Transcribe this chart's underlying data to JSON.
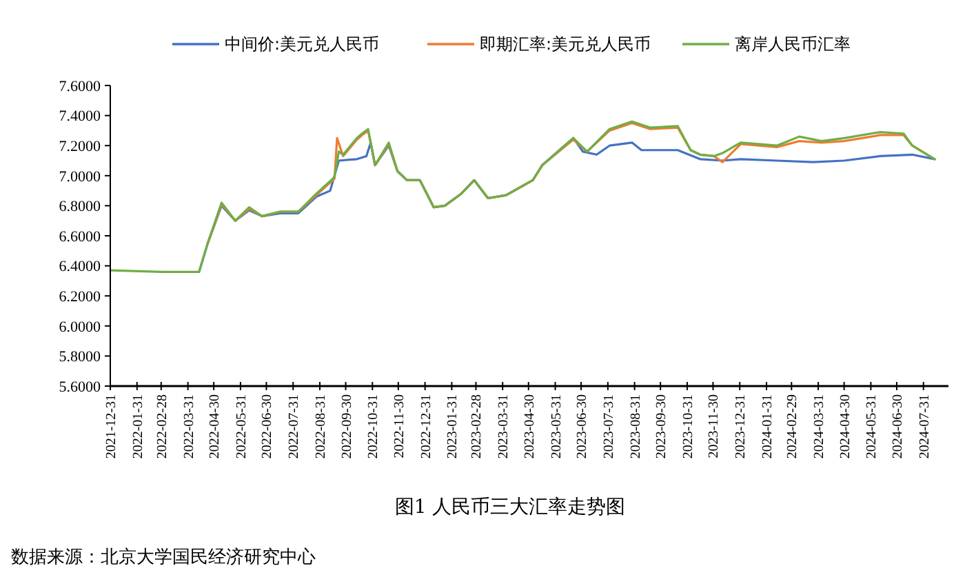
{
  "chart_data": {
    "type": "line",
    "title": "图1 人民币三大汇率走势图",
    "annotations": [
      "数据来源：北京大学国民经济研究中心"
    ],
    "legend": "top",
    "line_style": "solid",
    "ylim": [
      5.6,
      7.6
    ],
    "yticks": [
      {
        "value": 5.6,
        "label": "5.6000"
      },
      {
        "value": 5.8,
        "label": "5.8000"
      },
      {
        "value": 6.0,
        "label": "6.0000"
      },
      {
        "value": 6.2,
        "label": "6.2000"
      },
      {
        "value": 6.4,
        "label": "6.4000"
      },
      {
        "value": 6.6,
        "label": "6.6000"
      },
      {
        "value": 6.8,
        "label": "6.8000"
      },
      {
        "value": 7.0,
        "label": "7.0000"
      },
      {
        "value": 7.2,
        "label": "7.2000"
      },
      {
        "value": 7.4,
        "label": "7.4000"
      },
      {
        "value": 7.6,
        "label": "7.6000"
      }
    ],
    "xlim": [
      "2021-12-31",
      "2024-08-29"
    ],
    "xticks": [
      "2021-12-31",
      "2022-01-31",
      "2022-02-28",
      "2022-03-31",
      "2022-04-30",
      "2022-05-31",
      "2022-06-30",
      "2022-07-31",
      "2022-08-31",
      "2022-09-30",
      "2022-10-31",
      "2022-11-30",
      "2022-12-31",
      "2023-01-31",
      "2023-02-28",
      "2023-03-31",
      "2023-04-30",
      "2023-05-31",
      "2023-06-30",
      "2023-07-31",
      "2023-08-31",
      "2023-09-30",
      "2023-10-31",
      "2023-11-30",
      "2023-12-31",
      "2024-01-31",
      "2024-02-29",
      "2024-03-31",
      "2024-04-30",
      "2024-05-31",
      "2024-06-30",
      "2024-07-31"
    ],
    "series": [
      {
        "name": "中间价:美元兑人民币",
        "color": "#4472c4",
        "x": [
          "2022-04-13",
          "2022-04-23",
          "2022-05-09",
          "2022-05-25",
          "2022-06-10",
          "2022-06-25",
          "2022-07-16",
          "2022-08-06",
          "2022-08-27",
          "2022-09-12",
          "2022-09-22",
          "2022-10-13",
          "2022-10-24",
          "2022-10-29",
          "2022-11-03",
          "2022-11-19",
          "2022-11-29",
          "2022-12-10",
          "2022-12-25",
          "2023-01-10",
          "2023-01-23",
          "2023-02-11",
          "2023-02-26",
          "2023-03-14",
          "2023-04-04",
          "2023-05-05",
          "2023-05-16",
          "2023-06-21",
          "2023-07-02",
          "2023-07-18",
          "2023-08-02",
          "2023-08-28",
          "2023-09-08",
          "2023-10-20",
          "2023-11-15",
          "2023-12-11",
          "2024-01-01",
          "2024-02-12",
          "2024-03-25",
          "2024-04-30",
          "2024-06-11",
          "2024-07-18",
          "2024-08-13"
        ],
        "values": [
          6.36,
          6.55,
          6.8,
          6.7,
          6.77,
          6.73,
          6.75,
          6.75,
          6.86,
          6.9,
          7.1,
          7.11,
          7.13,
          7.22,
          7.07,
          7.2,
          7.03,
          6.97,
          6.97,
          6.79,
          6.8,
          6.88,
          6.97,
          6.85,
          6.87,
          6.97,
          7.07,
          7.25,
          7.16,
          7.14,
          7.2,
          7.22,
          7.17,
          7.17,
          7.11,
          7.1,
          7.11,
          7.1,
          7.09,
          7.1,
          7.13,
          7.14,
          7.11
        ]
      },
      {
        "name": "即期汇率:美元兑人民币",
        "color": "#ed7d31",
        "x": [
          "2022-04-23",
          "2022-05-09",
          "2022-05-25",
          "2022-06-10",
          "2022-06-25",
          "2022-07-16",
          "2022-08-06",
          "2022-08-27",
          "2022-09-17",
          "2022-09-20",
          "2022-09-27",
          "2022-10-13",
          "2022-10-19",
          "2022-10-26",
          "2022-11-03",
          "2022-11-19",
          "2022-11-29",
          "2022-12-10",
          "2022-12-25",
          "2023-01-10",
          "2023-01-23",
          "2023-02-11",
          "2023-02-26",
          "2023-03-14",
          "2023-04-04",
          "2023-05-05",
          "2023-05-16",
          "2023-06-21",
          "2023-07-07",
          "2023-08-02",
          "2023-08-28",
          "2023-09-18",
          "2023-10-20",
          "2023-11-04",
          "2023-11-15",
          "2023-12-01",
          "2023-12-11",
          "2024-01-01",
          "2024-02-12",
          "2024-03-09",
          "2024-04-04",
          "2024-04-30",
          "2024-06-11",
          "2024-07-08",
          "2024-07-18",
          "2024-08-13"
        ],
        "values": [
          6.55,
          6.81,
          6.7,
          6.78,
          6.73,
          6.76,
          6.76,
          6.87,
          6.98,
          7.25,
          7.13,
          7.24,
          7.27,
          7.3,
          7.07,
          7.21,
          7.03,
          6.97,
          6.97,
          6.79,
          6.8,
          6.88,
          6.97,
          6.85,
          6.87,
          6.97,
          7.07,
          7.24,
          7.16,
          7.3,
          7.35,
          7.31,
          7.32,
          7.17,
          7.14,
          7.13,
          7.09,
          7.21,
          7.19,
          7.23,
          7.22,
          7.23,
          7.27,
          7.27,
          7.2,
          7.11
        ]
      },
      {
        "name": "离岸人民币汇率",
        "color": "#70ad47",
        "x": [
          "2021-12-31",
          "2022-03-01",
          "2022-04-13",
          "2022-04-23",
          "2022-05-09",
          "2022-05-25",
          "2022-06-10",
          "2022-06-25",
          "2022-07-16",
          "2022-08-06",
          "2022-08-27",
          "2022-09-17",
          "2022-09-22",
          "2022-09-27",
          "2022-10-13",
          "2022-10-19",
          "2022-10-26",
          "2022-11-03",
          "2022-11-19",
          "2022-11-29",
          "2022-12-10",
          "2022-12-25",
          "2023-01-10",
          "2023-01-23",
          "2023-02-11",
          "2023-02-26",
          "2023-03-14",
          "2023-04-04",
          "2023-05-05",
          "2023-05-16",
          "2023-06-21",
          "2023-07-07",
          "2023-08-02",
          "2023-08-28",
          "2023-09-18",
          "2023-10-20",
          "2023-11-04",
          "2023-11-15",
          "2023-12-01",
          "2023-12-11",
          "2024-01-01",
          "2024-02-12",
          "2024-03-09",
          "2024-04-04",
          "2024-04-30",
          "2024-06-11",
          "2024-07-08",
          "2024-07-18",
          "2024-08-13"
        ],
        "values": [
          6.37,
          6.36,
          6.36,
          6.55,
          6.82,
          6.7,
          6.79,
          6.73,
          6.76,
          6.76,
          6.88,
          6.99,
          7.16,
          7.14,
          7.25,
          7.28,
          7.31,
          7.07,
          7.22,
          7.03,
          6.97,
          6.97,
          6.79,
          6.8,
          6.88,
          6.97,
          6.85,
          6.87,
          6.97,
          7.07,
          7.25,
          7.16,
          7.31,
          7.36,
          7.32,
          7.33,
          7.17,
          7.14,
          7.13,
          7.15,
          7.22,
          7.2,
          7.26,
          7.23,
          7.25,
          7.29,
          7.28,
          7.2,
          7.11
        ]
      }
    ]
  }
}
